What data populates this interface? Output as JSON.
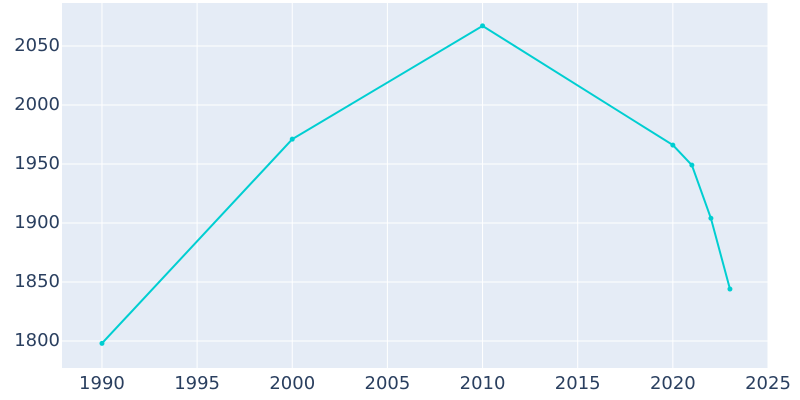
{
  "chart_data": {
    "type": "line",
    "x": [
      1990,
      2000,
      2010,
      2020,
      2021,
      2022,
      2023
    ],
    "series": [
      {
        "color": "#00ced1",
        "values": [
          1798,
          1971,
          2067,
          1966,
          1949,
          1904,
          1844
        ]
      }
    ],
    "xlim": [
      1987.9,
      2025
    ],
    "xticks": [
      1990,
      1995,
      2000,
      2005,
      2010,
      2015,
      2020,
      2025
    ],
    "ylim": [
      1777.1,
      2086.4
    ],
    "yticks": [
      1800,
      1850,
      1900,
      1950,
      2000,
      2050
    ],
    "grid": true
  }
}
